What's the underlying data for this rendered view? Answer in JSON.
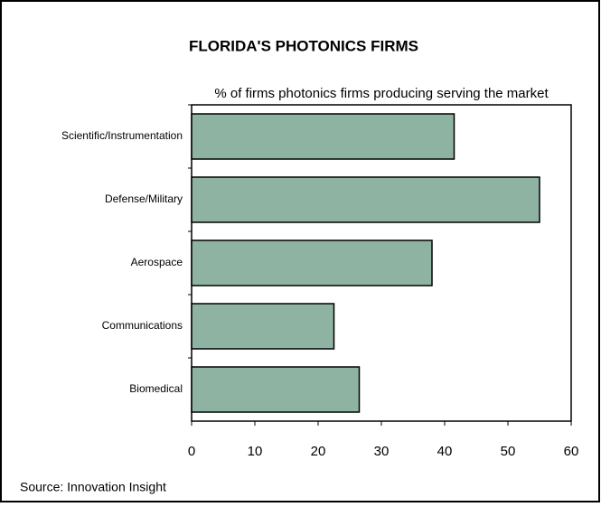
{
  "chart_data": {
    "type": "hbar",
    "title": "FLORIDA'S PHOTONICS FIRMS",
    "subtitle": "% of firms photonics firms producing serving the market",
    "categories": [
      "Scientific/Instrumentation",
      "Defense/Military",
      "Aerospace",
      "Communications",
      "Biomedical"
    ],
    "values": [
      41.5,
      55,
      38,
      22.5,
      26.5
    ],
    "color": "#8fb3a3",
    "xlim": [
      0,
      60
    ],
    "xticks": [
      0,
      10,
      20,
      30,
      40,
      50,
      60
    ],
    "grid": false,
    "source": "Source: Innovation Insight"
  }
}
